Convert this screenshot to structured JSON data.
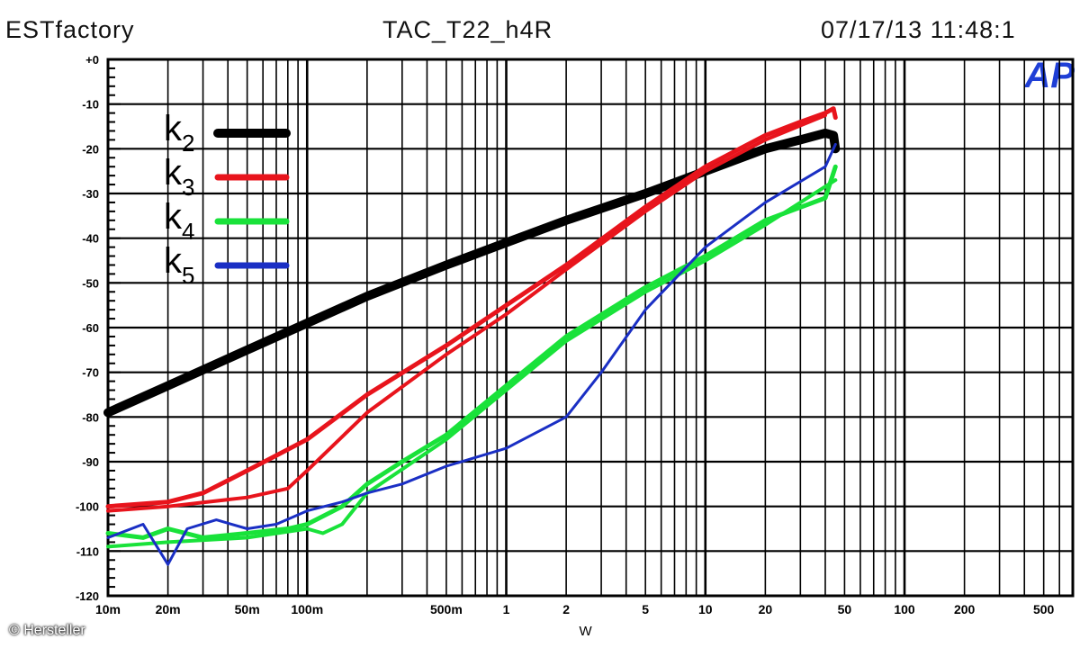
{
  "header": {
    "left": "ESTfactory",
    "center": "TAC_T22_h4R",
    "right": "07/17/13 11:48:1"
  },
  "brand_mark": "AP",
  "credit": "© Hersteller",
  "chart_data": {
    "type": "line",
    "title": "",
    "xlabel": "W",
    "ylabel": "",
    "x_scale": "log",
    "xlim": [
      0.01,
      700
    ],
    "ylim": [
      -120,
      0
    ],
    "grid": true,
    "legend_placement": "top-left",
    "x_ticks": [
      {
        "value": 0.01,
        "label": "10m"
      },
      {
        "value": 0.02,
        "label": "20m"
      },
      {
        "value": 0.05,
        "label": "50m"
      },
      {
        "value": 0.1,
        "label": "100m"
      },
      {
        "value": 0.5,
        "label": "500m"
      },
      {
        "value": 1,
        "label": "1"
      },
      {
        "value": 2,
        "label": "2"
      },
      {
        "value": 5,
        "label": "5"
      },
      {
        "value": 10,
        "label": "10"
      },
      {
        "value": 20,
        "label": "20"
      },
      {
        "value": 50,
        "label": "50"
      },
      {
        "value": 100,
        "label": "100"
      },
      {
        "value": 200,
        "label": "200"
      },
      {
        "value": 500,
        "label": "500"
      }
    ],
    "y_ticks": [
      {
        "value": 0,
        "label": "+0"
      },
      {
        "value": -10,
        "label": "-10"
      },
      {
        "value": -20,
        "label": "-20"
      },
      {
        "value": -30,
        "label": "-30"
      },
      {
        "value": -40,
        "label": "-40"
      },
      {
        "value": -50,
        "label": "-50"
      },
      {
        "value": -60,
        "label": "-60"
      },
      {
        "value": -70,
        "label": "-70"
      },
      {
        "value": -80,
        "label": "-80"
      },
      {
        "value": -90,
        "label": "-90"
      },
      {
        "value": -100,
        "label": "-100"
      },
      {
        "value": -110,
        "label": "-110"
      },
      {
        "value": -120,
        "label": "-120"
      }
    ],
    "series": [
      {
        "name": "k2",
        "legend_main": "k",
        "legend_sub": "2",
        "color": "#000000",
        "width": 10,
        "points": [
          [
            0.01,
            -79
          ],
          [
            0.02,
            -73
          ],
          [
            0.05,
            -65
          ],
          [
            0.1,
            -59
          ],
          [
            0.2,
            -53
          ],
          [
            0.5,
            -46
          ],
          [
            1,
            -41
          ],
          [
            2,
            -36
          ],
          [
            5,
            -30
          ],
          [
            10,
            -25
          ],
          [
            20,
            -20
          ],
          [
            30,
            -18
          ],
          [
            40,
            -16.5
          ],
          [
            44,
            -17
          ],
          [
            45,
            -20
          ]
        ]
      },
      {
        "name": "k3",
        "legend_main": "k",
        "legend_sub": "3",
        "color": "#e8141c",
        "width": 5,
        "points": [
          [
            0.01,
            -100
          ],
          [
            0.02,
            -99
          ],
          [
            0.03,
            -97
          ],
          [
            0.05,
            -92
          ],
          [
            0.1,
            -85
          ],
          [
            0.2,
            -75
          ],
          [
            0.5,
            -64
          ],
          [
            1,
            -55
          ],
          [
            2,
            -46
          ],
          [
            5,
            -33
          ],
          [
            10,
            -24
          ],
          [
            20,
            -17
          ],
          [
            30,
            -14
          ],
          [
            40,
            -12
          ],
          [
            44,
            -11
          ],
          [
            45,
            -13
          ]
        ]
      },
      {
        "name": "k3-return",
        "color": "#e8141c",
        "width": 4,
        "points": [
          [
            0.01,
            -101
          ],
          [
            0.02,
            -100
          ],
          [
            0.05,
            -98
          ],
          [
            0.08,
            -96
          ],
          [
            0.1,
            -92
          ],
          [
            0.2,
            -79
          ],
          [
            0.5,
            -66
          ],
          [
            1,
            -57
          ],
          [
            2,
            -47
          ],
          [
            5,
            -34
          ],
          [
            10,
            -25
          ],
          [
            20,
            -18
          ],
          [
            40,
            -12.5
          ]
        ]
      },
      {
        "name": "k4",
        "legend_main": "k",
        "legend_sub": "4",
        "color": "#19e23a",
        "width": 5,
        "points": [
          [
            0.01,
            -106
          ],
          [
            0.015,
            -107
          ],
          [
            0.02,
            -105
          ],
          [
            0.03,
            -107
          ],
          [
            0.05,
            -106
          ],
          [
            0.08,
            -105
          ],
          [
            0.1,
            -104
          ],
          [
            0.15,
            -100
          ],
          [
            0.2,
            -95
          ],
          [
            0.3,
            -90
          ],
          [
            0.5,
            -84
          ],
          [
            1,
            -73
          ],
          [
            2,
            -62
          ],
          [
            5,
            -51
          ],
          [
            10,
            -44
          ],
          [
            20,
            -36
          ],
          [
            40,
            -31
          ],
          [
            45,
            -24
          ]
        ]
      },
      {
        "name": "k4-return",
        "color": "#19e23a",
        "width": 4,
        "points": [
          [
            0.01,
            -109
          ],
          [
            0.02,
            -108
          ],
          [
            0.05,
            -107
          ],
          [
            0.1,
            -105
          ],
          [
            0.12,
            -106
          ],
          [
            0.15,
            -104
          ],
          [
            0.2,
            -97
          ],
          [
            0.5,
            -85
          ],
          [
            1,
            -74
          ],
          [
            2,
            -63
          ],
          [
            5,
            -52
          ],
          [
            10,
            -45
          ],
          [
            20,
            -37
          ],
          [
            45,
            -27
          ]
        ]
      },
      {
        "name": "k5",
        "legend_main": "k",
        "legend_sub": "5",
        "color": "#1a2fc4",
        "width": 3,
        "points": [
          [
            0.01,
            -107
          ],
          [
            0.015,
            -104
          ],
          [
            0.02,
            -113
          ],
          [
            0.025,
            -105
          ],
          [
            0.035,
            -103
          ],
          [
            0.05,
            -105
          ],
          [
            0.07,
            -104
          ],
          [
            0.1,
            -101
          ],
          [
            0.15,
            -99
          ],
          [
            0.2,
            -97
          ],
          [
            0.3,
            -95
          ],
          [
            0.5,
            -91
          ],
          [
            1,
            -87
          ],
          [
            2,
            -80
          ],
          [
            3,
            -70
          ],
          [
            5,
            -56
          ],
          [
            10,
            -42
          ],
          [
            20,
            -32
          ],
          [
            40,
            -24
          ],
          [
            45,
            -19
          ]
        ]
      }
    ]
  }
}
